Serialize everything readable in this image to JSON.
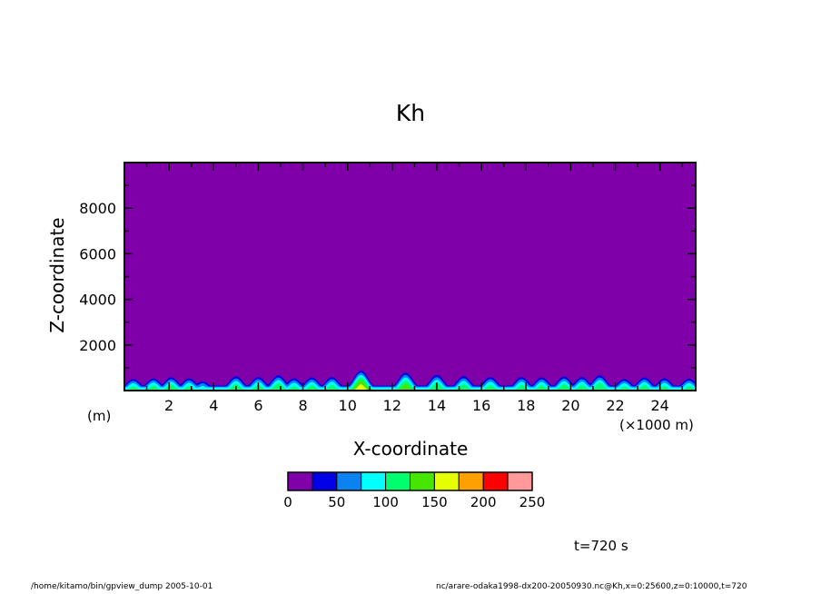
{
  "chart_data": {
    "type": "heatmap",
    "title": "Kh",
    "xlabel": "X-coordinate",
    "ylabel": "Z-coordinate",
    "x_unit": "(×1000 m)",
    "y_unit": "(m)",
    "xlim": [
      0,
      25.6
    ],
    "ylim": [
      0,
      10000
    ],
    "x_ticks": [
      2,
      4,
      6,
      8,
      10,
      12,
      14,
      16,
      18,
      20,
      22,
      24
    ],
    "x_tick_labels": [
      "2",
      "4",
      "6",
      "8",
      "10",
      "12",
      "14",
      "16",
      "18",
      "20",
      "22",
      "24"
    ],
    "y_ticks": [
      2000,
      4000,
      6000,
      8000
    ],
    "y_tick_labels": [
      "2000",
      "4000",
      "6000",
      "8000"
    ],
    "background_value_color": "#7f00a8",
    "colorbar": {
      "levels": [
        0,
        25,
        50,
        75,
        100,
        125,
        150,
        175,
        200,
        225,
        250
      ],
      "tick_labels": [
        "0",
        "50",
        "100",
        "150",
        "200",
        "250"
      ],
      "colors": [
        "#7f00a8",
        "#0000e6",
        "#0a82f0",
        "#00ffff",
        "#00ff6e",
        "#46e600",
        "#e6ff00",
        "#ffa000",
        "#ff0000",
        "#ff9a9a"
      ]
    },
    "boundary_layer": {
      "typical_top_z": 500,
      "thermals": [
        {
          "x": 0.4,
          "top": 520,
          "peak": 110
        },
        {
          "x": 1.3,
          "top": 550,
          "peak": 115
        },
        {
          "x": 2.1,
          "top": 600,
          "peak": 120
        },
        {
          "x": 2.9,
          "top": 560,
          "peak": 110
        },
        {
          "x": 3.5,
          "top": 420,
          "peak": 90
        },
        {
          "x": 5.0,
          "top": 650,
          "peak": 120
        },
        {
          "x": 6.0,
          "top": 620,
          "peak": 115
        },
        {
          "x": 6.9,
          "top": 700,
          "peak": 125
        },
        {
          "x": 7.6,
          "top": 560,
          "peak": 110
        },
        {
          "x": 8.4,
          "top": 600,
          "peak": 115
        },
        {
          "x": 9.3,
          "top": 620,
          "peak": 115
        },
        {
          "x": 10.6,
          "top": 900,
          "peak": 165
        },
        {
          "x": 12.6,
          "top": 820,
          "peak": 140
        },
        {
          "x": 14.0,
          "top": 720,
          "peak": 125
        },
        {
          "x": 15.2,
          "top": 660,
          "peak": 120
        },
        {
          "x": 16.4,
          "top": 620,
          "peak": 115
        },
        {
          "x": 17.8,
          "top": 620,
          "peak": 115
        },
        {
          "x": 18.7,
          "top": 600,
          "peak": 115
        },
        {
          "x": 19.7,
          "top": 640,
          "peak": 120
        },
        {
          "x": 20.5,
          "top": 620,
          "peak": 115
        },
        {
          "x": 21.3,
          "top": 700,
          "peak": 125
        },
        {
          "x": 22.4,
          "top": 520,
          "peak": 110
        },
        {
          "x": 23.3,
          "top": 600,
          "peak": 115
        },
        {
          "x": 24.2,
          "top": 560,
          "peak": 110
        },
        {
          "x": 25.3,
          "top": 540,
          "peak": 110
        }
      ]
    }
  },
  "labels": {
    "time": "t=720 s",
    "footer_left": "/home/kitamo/bin/gpview_dump   2005-10-01",
    "footer_right": "nc/arare-odaka1998-dx200-20050930.nc@Kh,x=0:25600,z=0:10000,t=720"
  }
}
